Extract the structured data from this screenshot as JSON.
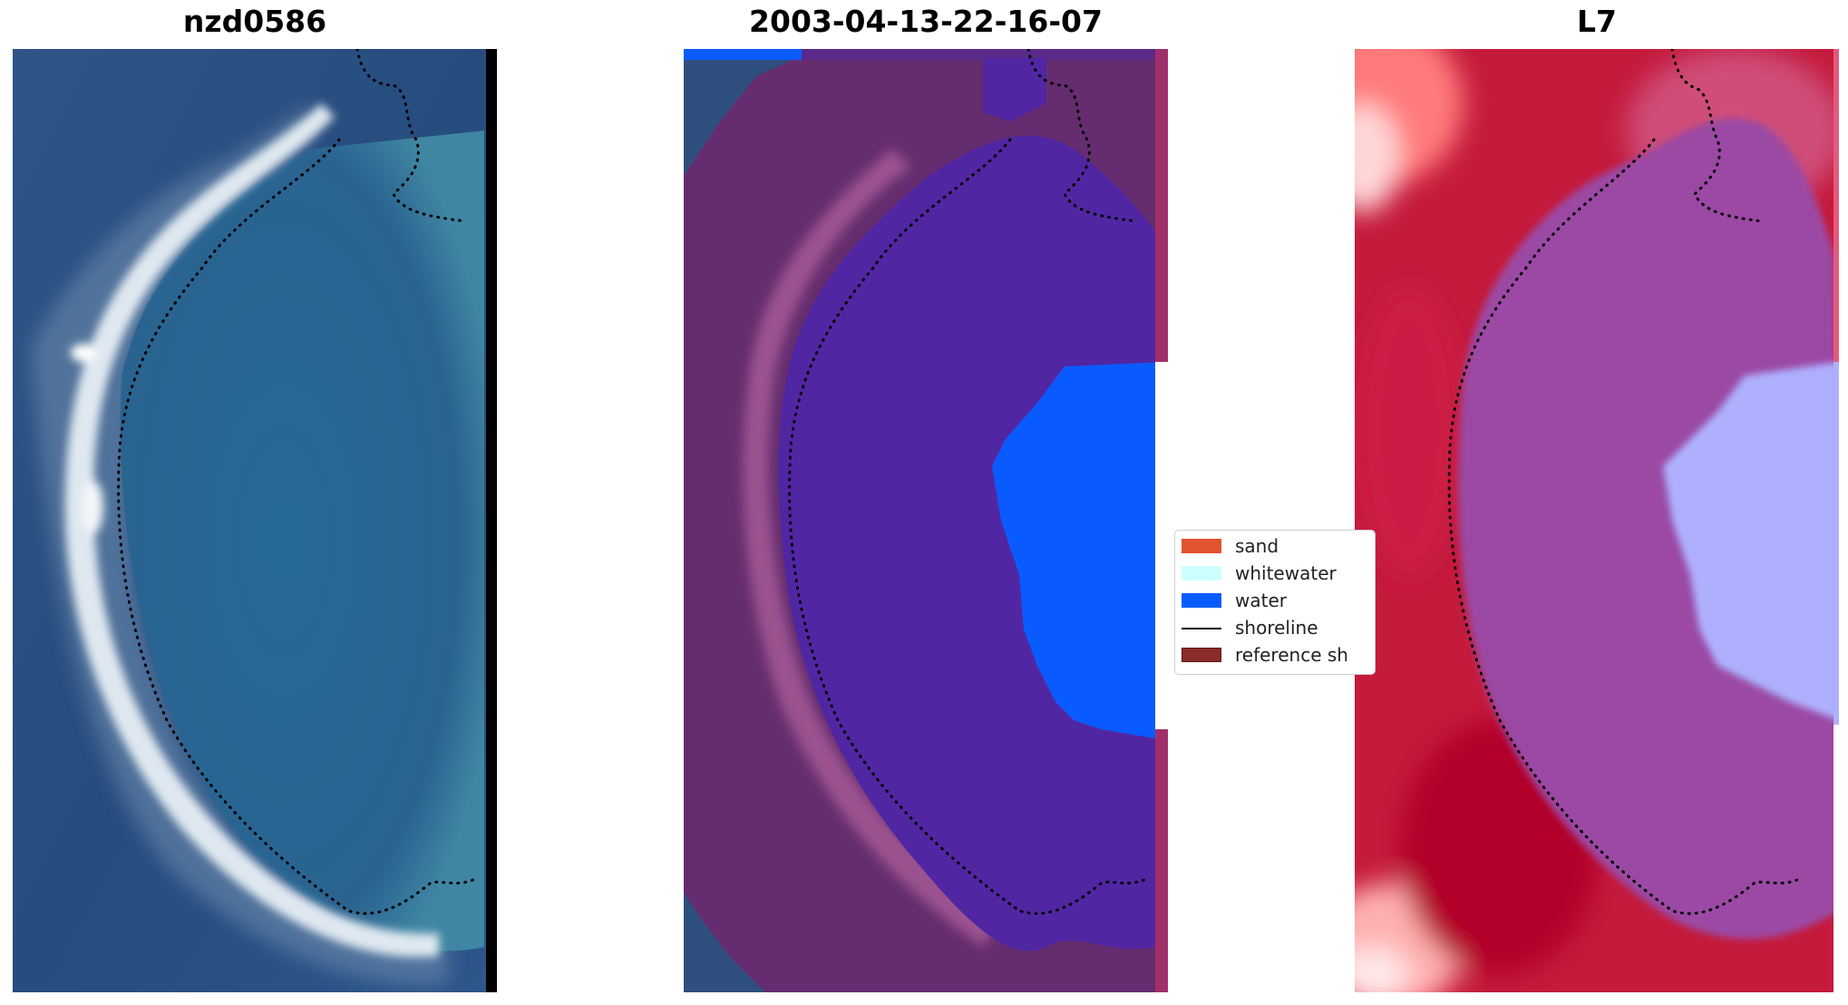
{
  "figure": {
    "panels": [
      {
        "title": "nzd0586"
      },
      {
        "title": "2003-04-13-22-16-07"
      },
      {
        "title": "L7"
      }
    ],
    "legend": {
      "items": [
        {
          "label": "sand",
          "color": "#e2532e",
          "kind": "patch"
        },
        {
          "label": "whitewater",
          "color": "#ccffff",
          "kind": "patch"
        },
        {
          "label": "water",
          "color": "#0a5bff",
          "kind": "patch"
        },
        {
          "label": "shoreline",
          "color": "#000000",
          "kind": "line"
        },
        {
          "label": "reference sh",
          "color": "#8b2a2a",
          "kind": "patch"
        }
      ]
    },
    "colors": {
      "ocean_rgb": "#2a4e82",
      "lagoon_rgb": "#2f6f9a",
      "beach_rgb": "#e6eef4",
      "class_overlay": "#5a2a8a",
      "water_class": "#0a5bff",
      "water_index_red": "#c8102e",
      "water_index_blue": "#b8b8ff"
    }
  }
}
